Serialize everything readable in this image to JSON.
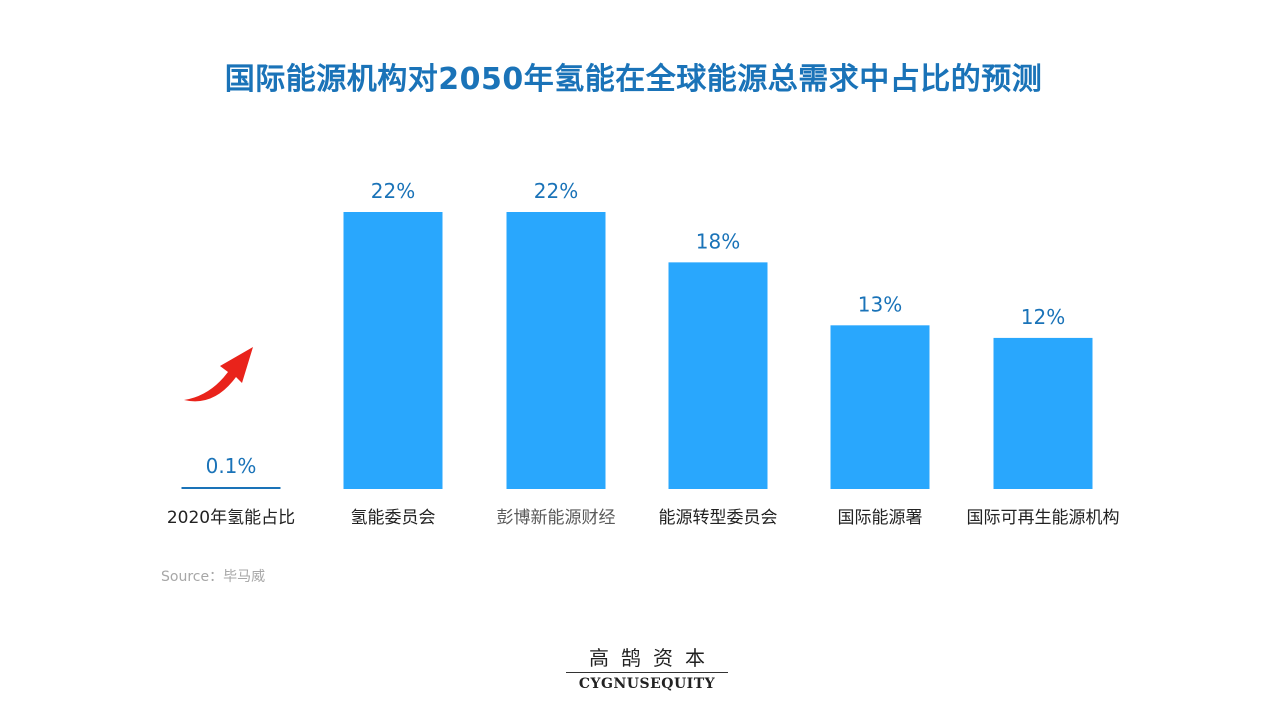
{
  "title": "国际能源机构对2050年氢能在全球能源总需求中占比的预测",
  "source": "Source：毕马威",
  "logo": {
    "cn": "高鹄资本",
    "en": "CYGNUSEQUITY"
  },
  "colors": {
    "title": "#1a73b8",
    "bar": "#29a7fd",
    "label": "#1a73b8",
    "arrow": "#e9231b"
  },
  "chart_data": {
    "type": "bar",
    "categories": [
      "2020年氢能占比",
      "氢能委员会",
      "彭博新能源财经",
      "能源转型委员会",
      "国际能源署",
      "国际可再生能源机构"
    ],
    "values": [
      0.1,
      22,
      22,
      18,
      13,
      12
    ],
    "value_labels": [
      "0.1%",
      "22%",
      "22%",
      "18%",
      "13%",
      "12%"
    ],
    "ylim": [
      0,
      22
    ],
    "grid": false,
    "annotation": "red curved arrow pointing up next to the 2020 bar"
  }
}
